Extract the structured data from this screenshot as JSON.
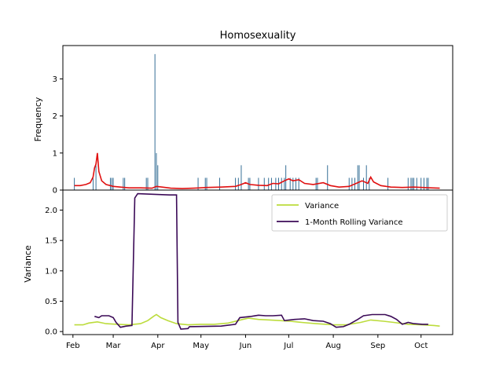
{
  "chart_data": [
    {
      "type": "bar",
      "panel": "top",
      "title": "Homosexuality",
      "xlabel": "",
      "ylabel": "Frequency",
      "ylim": [
        0,
        3.9
      ],
      "yticks": [
        0,
        1,
        2,
        3
      ],
      "xaxis_visible": false,
      "grid": false,
      "colors": {
        "bars": "#1f5f8b",
        "line": "#e01010"
      },
      "bars": [
        {
          "x": "2021-02-02",
          "y": 0.33
        },
        {
          "x": "2021-02-15",
          "y": 0.33
        },
        {
          "x": "2021-02-17",
          "y": 0.67
        },
        {
          "x": "2021-02-27",
          "y": 0.33
        },
        {
          "x": "2021-02-28",
          "y": 0.33
        },
        {
          "x": "2021-03-01",
          "y": 0.33
        },
        {
          "x": "2021-03-08",
          "y": 0.33
        },
        {
          "x": "2021-03-09",
          "y": 0.33
        },
        {
          "x": "2021-03-24",
          "y": 0.33
        },
        {
          "x": "2021-03-25",
          "y": 0.33
        },
        {
          "x": "2021-03-30",
          "y": 3.67
        },
        {
          "x": "2021-03-31",
          "y": 1.0
        },
        {
          "x": "2021-04-01",
          "y": 0.67
        },
        {
          "x": "2021-04-29",
          "y": 0.33
        },
        {
          "x": "2021-05-04",
          "y": 0.33
        },
        {
          "x": "2021-05-05",
          "y": 0.33
        },
        {
          "x": "2021-05-14",
          "y": 0.33
        },
        {
          "x": "2021-05-25",
          "y": 0.33
        },
        {
          "x": "2021-05-27",
          "y": 0.33
        },
        {
          "x": "2021-05-29",
          "y": 0.67
        },
        {
          "x": "2021-06-03",
          "y": 0.33
        },
        {
          "x": "2021-06-04",
          "y": 0.33
        },
        {
          "x": "2021-06-10",
          "y": 0.33
        },
        {
          "x": "2021-06-14",
          "y": 0.33
        },
        {
          "x": "2021-06-17",
          "y": 0.33
        },
        {
          "x": "2021-06-19",
          "y": 0.33
        },
        {
          "x": "2021-06-22",
          "y": 0.33
        },
        {
          "x": "2021-06-24",
          "y": 0.33
        },
        {
          "x": "2021-06-26",
          "y": 0.33
        },
        {
          "x": "2021-06-28",
          "y": 0.33
        },
        {
          "x": "2021-06-29",
          "y": 0.67
        },
        {
          "x": "2021-07-02",
          "y": 0.33
        },
        {
          "x": "2021-07-04",
          "y": 0.33
        },
        {
          "x": "2021-07-06",
          "y": 0.33
        },
        {
          "x": "2021-07-08",
          "y": 0.33
        },
        {
          "x": "2021-07-20",
          "y": 0.33
        },
        {
          "x": "2021-07-21",
          "y": 0.33
        },
        {
          "x": "2021-07-28",
          "y": 0.67
        },
        {
          "x": "2021-08-12",
          "y": 0.33
        },
        {
          "x": "2021-08-14",
          "y": 0.33
        },
        {
          "x": "2021-08-16",
          "y": 0.33
        },
        {
          "x": "2021-08-18",
          "y": 0.67
        },
        {
          "x": "2021-08-19",
          "y": 0.67
        },
        {
          "x": "2021-08-22",
          "y": 0.33
        },
        {
          "x": "2021-08-24",
          "y": 0.67
        },
        {
          "x": "2021-08-26",
          "y": 0.33
        },
        {
          "x": "2021-09-08",
          "y": 0.33
        },
        {
          "x": "2021-09-22",
          "y": 0.33
        },
        {
          "x": "2021-09-24",
          "y": 0.33
        },
        {
          "x": "2021-09-25",
          "y": 0.33
        },
        {
          "x": "2021-09-26",
          "y": 0.33
        },
        {
          "x": "2021-09-28",
          "y": 0.33
        },
        {
          "x": "2021-10-01",
          "y": 0.33
        },
        {
          "x": "2021-10-03",
          "y": 0.33
        },
        {
          "x": "2021-10-05",
          "y": 0.33
        },
        {
          "x": "2021-10-06",
          "y": 0.33
        }
      ],
      "line": [
        [
          "2021-02-02",
          0.12
        ],
        [
          "2021-02-06",
          0.12
        ],
        [
          "2021-02-10",
          0.15
        ],
        [
          "2021-02-13",
          0.2
        ],
        [
          "2021-02-15",
          0.35
        ],
        [
          "2021-02-16",
          0.6
        ],
        [
          "2021-02-17",
          0.7
        ],
        [
          "2021-02-18",
          1.0
        ],
        [
          "2021-02-19",
          0.5
        ],
        [
          "2021-02-21",
          0.25
        ],
        [
          "2021-02-24",
          0.15
        ],
        [
          "2021-03-01",
          0.1
        ],
        [
          "2021-03-06",
          0.08
        ],
        [
          "2021-03-12",
          0.06
        ],
        [
          "2021-03-20",
          0.06
        ],
        [
          "2021-03-28",
          0.05
        ],
        [
          "2021-03-31",
          0.1
        ],
        [
          "2021-04-04",
          0.08
        ],
        [
          "2021-04-10",
          0.05
        ],
        [
          "2021-04-18",
          0.04
        ],
        [
          "2021-04-26",
          0.05
        ],
        [
          "2021-05-05",
          0.07
        ],
        [
          "2021-05-15",
          0.08
        ],
        [
          "2021-05-25",
          0.1
        ],
        [
          "2021-05-29",
          0.15
        ],
        [
          "2021-06-01",
          0.2
        ],
        [
          "2021-06-04",
          0.15
        ],
        [
          "2021-06-10",
          0.13
        ],
        [
          "2021-06-16",
          0.12
        ],
        [
          "2021-06-20",
          0.18
        ],
        [
          "2021-06-24",
          0.17
        ],
        [
          "2021-06-28",
          0.25
        ],
        [
          "2021-07-01",
          0.3
        ],
        [
          "2021-07-04",
          0.25
        ],
        [
          "2021-07-08",
          0.28
        ],
        [
          "2021-07-12",
          0.18
        ],
        [
          "2021-07-18",
          0.15
        ],
        [
          "2021-07-25",
          0.2
        ],
        [
          "2021-07-30",
          0.12
        ],
        [
          "2021-08-05",
          0.08
        ],
        [
          "2021-08-12",
          0.1
        ],
        [
          "2021-08-18",
          0.2
        ],
        [
          "2021-08-21",
          0.25
        ],
        [
          "2021-08-25",
          0.18
        ],
        [
          "2021-08-27",
          0.35
        ],
        [
          "2021-08-29",
          0.22
        ],
        [
          "2021-09-03",
          0.12
        ],
        [
          "2021-09-10",
          0.08
        ],
        [
          "2021-09-18",
          0.07
        ],
        [
          "2021-09-26",
          0.08
        ],
        [
          "2021-10-02",
          0.07
        ],
        [
          "2021-10-08",
          0.06
        ],
        [
          "2021-10-14",
          0.05
        ]
      ]
    },
    {
      "type": "line",
      "panel": "bottom",
      "title": "",
      "xlabel": "",
      "ylabel": "Variance",
      "ylim": [
        -0.05,
        2.33
      ],
      "yticks": [
        "0.0",
        "0.5",
        "1.0",
        "1.5",
        "2.0"
      ],
      "xticks": [
        "Feb",
        "Mar",
        "Apr",
        "May",
        "Jun",
        "Jul",
        "Aug",
        "Sep",
        "Oct"
      ],
      "xtick_dates": [
        "2021-02-01",
        "2021-03-01",
        "2021-04-01",
        "2021-05-01",
        "2021-06-01",
        "2021-07-01",
        "2021-08-01",
        "2021-09-01",
        "2021-10-01"
      ],
      "xlim": [
        "2021-01-25",
        "2021-10-23"
      ],
      "grid": false,
      "legend_position": "top-right",
      "series": [
        {
          "name": "Variance",
          "color": "#bcdc3c",
          "points": [
            [
              "2021-02-02",
              0.11
            ],
            [
              "2021-02-08",
              0.11
            ],
            [
              "2021-02-12",
              0.14
            ],
            [
              "2021-02-18",
              0.16
            ],
            [
              "2021-02-24",
              0.13
            ],
            [
              "2021-03-04",
              0.12
            ],
            [
              "2021-03-12",
              0.11
            ],
            [
              "2021-03-20",
              0.13
            ],
            [
              "2021-03-25",
              0.18
            ],
            [
              "2021-03-29",
              0.25
            ],
            [
              "2021-03-31",
              0.28
            ],
            [
              "2021-04-03",
              0.23
            ],
            [
              "2021-04-08",
              0.18
            ],
            [
              "2021-04-14",
              0.13
            ],
            [
              "2021-04-22",
              0.11
            ],
            [
              "2021-05-01",
              0.12
            ],
            [
              "2021-05-10",
              0.12
            ],
            [
              "2021-05-20",
              0.14
            ],
            [
              "2021-05-30",
              0.2
            ],
            [
              "2021-06-03",
              0.22
            ],
            [
              "2021-06-10",
              0.2
            ],
            [
              "2021-06-18",
              0.19
            ],
            [
              "2021-06-25",
              0.18
            ],
            [
              "2021-07-02",
              0.17
            ],
            [
              "2021-07-10",
              0.15
            ],
            [
              "2021-07-20",
              0.13
            ],
            [
              "2021-08-01",
              0.11
            ],
            [
              "2021-08-10",
              0.11
            ],
            [
              "2021-08-20",
              0.15
            ],
            [
              "2021-08-27",
              0.19
            ],
            [
              "2021-09-05",
              0.17
            ],
            [
              "2021-09-12",
              0.15
            ],
            [
              "2021-09-22",
              0.12
            ],
            [
              "2021-10-02",
              0.11
            ],
            [
              "2021-10-10",
              0.1
            ],
            [
              "2021-10-14",
              0.09
            ]
          ]
        },
        {
          "name": "1-Month Rolling Variance",
          "color": "#3b0a57",
          "points": [
            [
              "2021-02-16",
              0.25
            ],
            [
              "2021-02-19",
              0.23
            ],
            [
              "2021-02-21",
              0.26
            ],
            [
              "2021-02-26",
              0.26
            ],
            [
              "2021-03-01",
              0.23
            ],
            [
              "2021-03-03",
              0.15
            ],
            [
              "2021-03-06",
              0.07
            ],
            [
              "2021-03-10",
              0.09
            ],
            [
              "2021-03-14",
              0.1
            ],
            [
              "2021-03-16",
              2.2
            ],
            [
              "2021-03-18",
              2.27
            ],
            [
              "2021-04-09",
              2.25
            ],
            [
              "2021-04-14",
              2.25
            ],
            [
              "2021-04-15",
              0.15
            ],
            [
              "2021-04-17",
              0.04
            ],
            [
              "2021-04-22",
              0.05
            ],
            [
              "2021-04-23",
              0.08
            ],
            [
              "2021-05-15",
              0.09
            ],
            [
              "2021-05-25",
              0.12
            ],
            [
              "2021-05-28",
              0.23
            ],
            [
              "2021-06-05",
              0.25
            ],
            [
              "2021-06-10",
              0.27
            ],
            [
              "2021-06-15",
              0.26
            ],
            [
              "2021-06-20",
              0.26
            ],
            [
              "2021-06-26",
              0.27
            ],
            [
              "2021-06-28",
              0.18
            ],
            [
              "2021-07-05",
              0.2
            ],
            [
              "2021-07-12",
              0.21
            ],
            [
              "2021-07-18",
              0.18
            ],
            [
              "2021-07-25",
              0.17
            ],
            [
              "2021-07-30",
              0.13
            ],
            [
              "2021-08-03",
              0.07
            ],
            [
              "2021-08-08",
              0.08
            ],
            [
              "2021-08-12",
              0.12
            ],
            [
              "2021-08-18",
              0.2
            ],
            [
              "2021-08-22",
              0.26
            ],
            [
              "2021-08-28",
              0.28
            ],
            [
              "2021-09-06",
              0.28
            ],
            [
              "2021-09-10",
              0.25
            ],
            [
              "2021-09-14",
              0.2
            ],
            [
              "2021-09-18",
              0.12
            ],
            [
              "2021-09-22",
              0.15
            ],
            [
              "2021-09-26",
              0.13
            ],
            [
              "2021-10-02",
              0.12
            ],
            [
              "2021-10-06",
              0.12
            ]
          ]
        }
      ]
    }
  ]
}
